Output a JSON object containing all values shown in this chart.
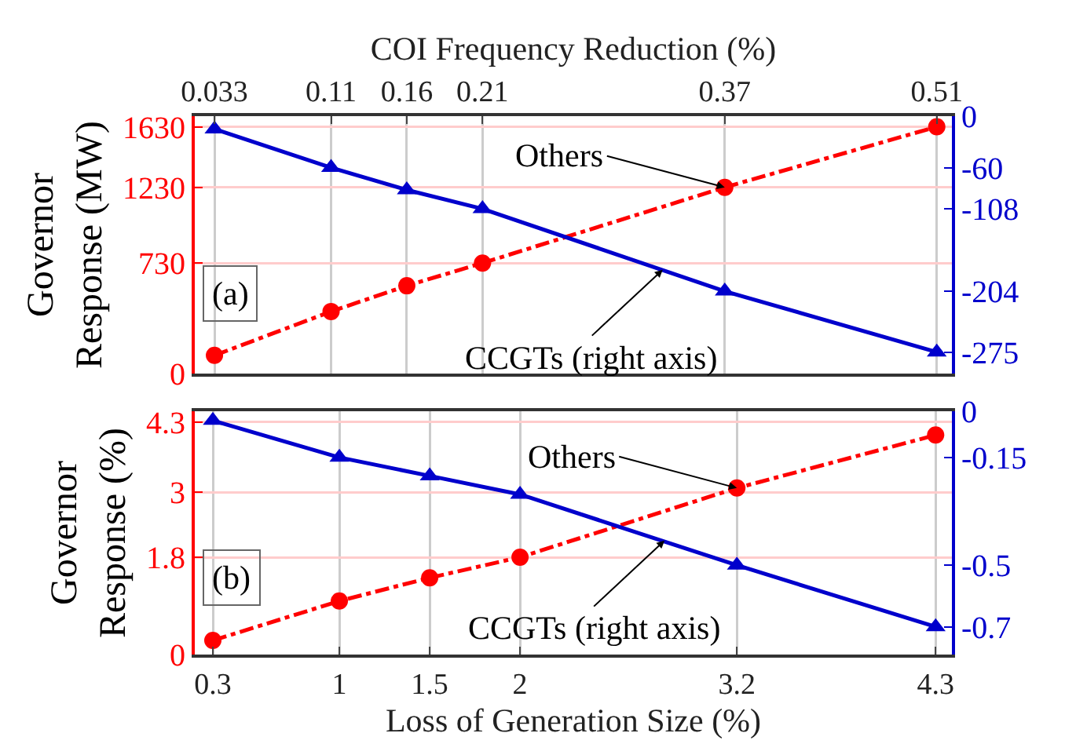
{
  "chart_data": [
    {
      "type": "line",
      "xlabel": "COI Frequency Reduction (%)",
      "ylabel": "Governor Response (MW)",
      "xlim": [
        0.02,
        0.52
      ],
      "xticks": [
        0.033,
        0.11,
        0.16,
        0.21,
        0.37,
        0.51
      ],
      "x": [
        0.033,
        0.11,
        0.16,
        0.21,
        0.37,
        0.51
      ],
      "ylim": [
        0,
        1700
      ],
      "yticks": [
        0,
        730,
        1230,
        1630
      ],
      "y2lim": [
        -300,
        0
      ],
      "y2ticks": [
        0,
        -60,
        -108,
        -204,
        -275
      ],
      "series": [
        {
          "color": "#ff0000",
          "values": [
            120,
            410,
            580,
            730,
            1230,
            1630
          ],
          "marker": "circle",
          "line_style": "dashed"
        },
        {
          "color": "#0000cc",
          "values": [
            -15,
            -60,
            -86,
            -108,
            -204,
            -275
          ],
          "marker": "triangle",
          "line_style": "solid",
          "axis": "y2"
        }
      ],
      "grid": true,
      "annotations": [
        {
          "text": "Others",
          "x": 0.37,
          "y": 1230
        },
        {
          "text": "CCGTs (right axis)",
          "x": 0.329,
          "y": 686
        },
        "(a)"
      ]
    },
    {
      "type": "line",
      "xlabel": "Loss of Generation Size (%)",
      "ylabel": "Governor Response (%)",
      "xlim": [
        0.2,
        4.39
      ],
      "xticks": [
        0.3,
        1,
        1.5,
        2,
        3.2,
        4.3
      ],
      "x": [
        0.3,
        1,
        1.5,
        2,
        3.2,
        4.3
      ],
      "ylim": [
        0,
        4.5
      ],
      "yticks": [
        0,
        1.8,
        3,
        4.3
      ],
      "y2lim": [
        -0.79,
        0
      ],
      "y2ticks": [
        0,
        -0.15,
        -0.5,
        -0.7
      ],
      "series": [
        {
          "color": "#ff0000",
          "values": [
            0.26,
            0.99,
            1.42,
            1.8,
            3.08,
            4.06
          ],
          "marker": "circle",
          "line_style": "dashed"
        },
        {
          "color": "#0000cc",
          "values": [
            -0.03,
            -0.15,
            -0.21,
            -0.27,
            -0.5,
            -0.7
          ],
          "marker": "triangle",
          "line_style": "solid",
          "axis": "y2"
        }
      ],
      "grid": true,
      "annotations": [
        {
          "text": "Others",
          "x": 3.2,
          "y": 3.08
        },
        {
          "text": "CCGTs (right axis)",
          "x": 2.8,
          "y": 2.11
        },
        "(b)"
      ]
    }
  ]
}
